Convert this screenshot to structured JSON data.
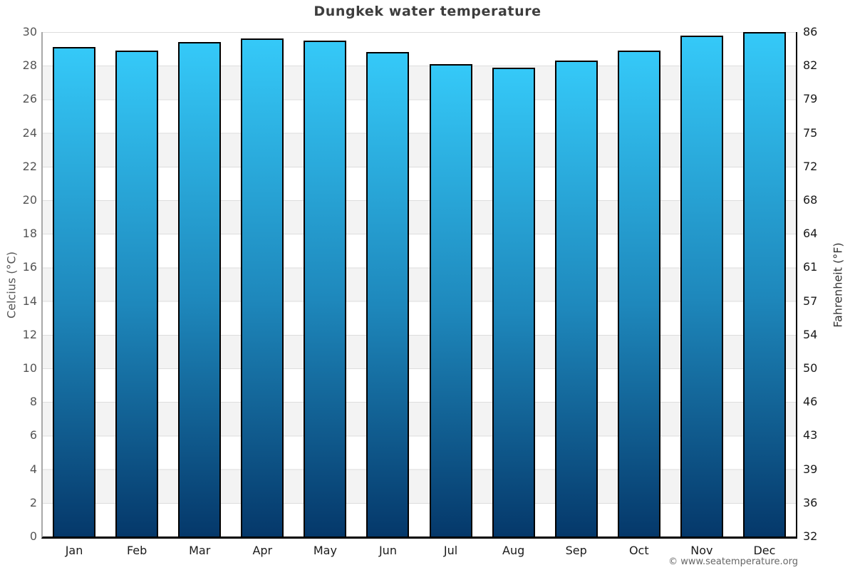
{
  "title": "Dungkek water temperature",
  "watermark": "© www.seatemperature.org",
  "axes": {
    "left_title": "Celcius (°C)",
    "right_title": "Fahrenheit (°F)"
  },
  "chart_data": {
    "type": "bar",
    "title": "Dungkek water temperature",
    "categories": [
      "Jan",
      "Feb",
      "Mar",
      "Apr",
      "May",
      "Jun",
      "Jul",
      "Aug",
      "Sep",
      "Oct",
      "Nov",
      "Dec"
    ],
    "values": [
      29.1,
      28.9,
      29.4,
      29.6,
      29.5,
      28.8,
      28.1,
      27.9,
      28.3,
      28.9,
      29.8,
      30.0
    ],
    "unit": "°C",
    "xlabel": "",
    "ylabel_left": "Celcius (°C)",
    "ylabel_right": "Fahrenheit (°F)",
    "ylim": [
      0,
      30
    ],
    "yticks_celsius": [
      30,
      28,
      26,
      24,
      22,
      20,
      18,
      16,
      14,
      12,
      10,
      8,
      6,
      4,
      2,
      0
    ],
    "yticks_fahrenheit": [
      86,
      82,
      79,
      75,
      72,
      68,
      64,
      61,
      57,
      54,
      50,
      46,
      43,
      39,
      36,
      32
    ],
    "grid": "horizontal gridlines with alternating white/gray bands every 2°C",
    "legend": "none",
    "colors": {
      "bar_gradient_top": "#35c9f8",
      "bar_gradient_mid": "#1e88bc",
      "bar_gradient_bottom": "#05386a",
      "bar_border": "#000000",
      "band_gray": "#f3f3f3",
      "gridline": "#dddddd",
      "left_spine": "#a8a8a8",
      "right_spine": "#000000",
      "bottom_axis": "#000000",
      "title_text": "#3d3d3d",
      "left_ticks_text": "#555555",
      "right_ticks_text": "#1a1a1a",
      "watermark_text": "#666666"
    }
  }
}
